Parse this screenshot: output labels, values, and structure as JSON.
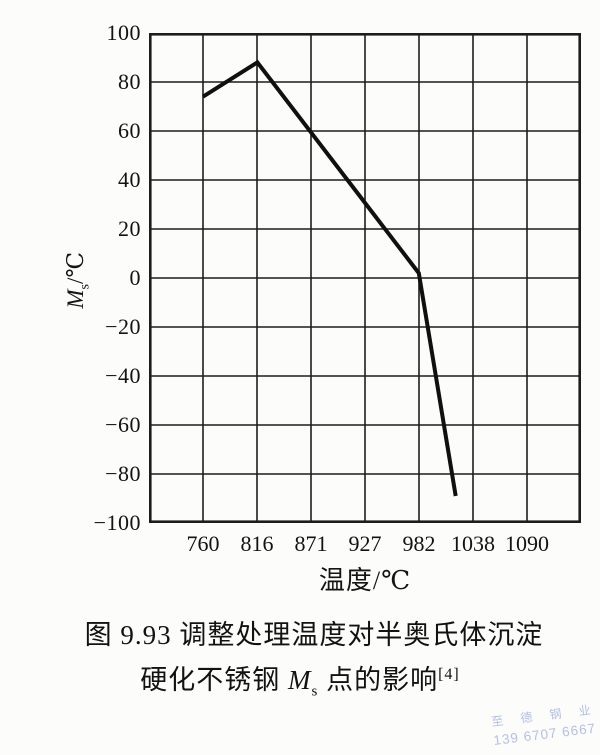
{
  "chart_data": {
    "type": "line",
    "title": "图 9.93 调整处理温度对半奥氏体沉淀硬化不锈钢Ms点的影响[4]",
    "xlabel": "温度/℃",
    "ylabel_main": "M",
    "ylabel_sub": "s",
    "ylabel_unit": "/℃",
    "x_tick_labels": [
      "760",
      "816",
      "871",
      "927",
      "982",
      "1038",
      "1090"
    ],
    "x_tick_values_c": [
      760,
      816,
      871,
      927,
      982,
      1038,
      1090
    ],
    "y_tick_labels": [
      "100",
      "80",
      "60",
      "40",
      "20",
      "0",
      "−20",
      "−40",
      "−60",
      "−80",
      "−100"
    ],
    "y_tick_values": [
      100,
      80,
      60,
      40,
      20,
      0,
      -20,
      -40,
      -60,
      -80,
      -100
    ],
    "ylim": [
      -100,
      100
    ],
    "x_range_F": [
      1300,
      2100
    ],
    "x_scale_note": "vertical gridlines evenly spaced every 100°F (1300–2100°F); tick labels are °C equivalents",
    "grid": true,
    "grid_color": "#1d1d1d",
    "line_color": "#101010",
    "series": [
      {
        "name": "Ms point vs conditioning temperature",
        "points_c": [
          [
            760,
            74
          ],
          [
            816,
            88
          ],
          [
            982,
            2
          ],
          [
            1020,
            -89
          ]
        ]
      }
    ]
  },
  "caption": {
    "line1": "图 9.93  调整处理温度对半奥氏体沉淀",
    "line2_pre": "硬化不锈钢 ",
    "line2_m": "M",
    "line2_m_sub": "s",
    "line2_post": " 点的影响",
    "line2_ref": "[4]"
  },
  "watermark": {
    "line1": "至 德 钢 业",
    "line2": "139 6707 6667",
    "color": "#b3c0e5"
  }
}
